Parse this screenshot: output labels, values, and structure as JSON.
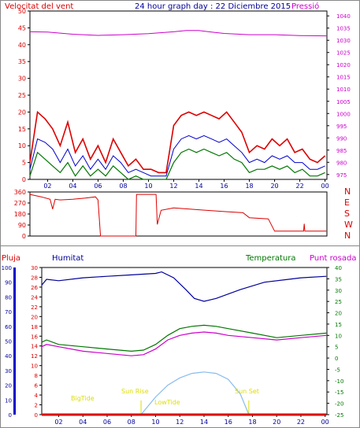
{
  "labels": {
    "wind_title": "Velocitat del vent",
    "graph_title": "24 hour graph day : 22 Diciembre 2015",
    "pressure_title": "Pressió",
    "rain_title": "Pluja",
    "humidity_title": "Humitat",
    "temperature_title": "Temperatura",
    "dewpoint_title": "Punt rosada",
    "bigtide": "BigTide",
    "lowtide": "LowTide",
    "sunrise": "Sun Rise",
    "sunset": "Sun Set"
  },
  "colors": {
    "wind": "#dd0000",
    "pressure": "#cc00cc",
    "rain": "#dd0000",
    "humidity": "#000099",
    "temperature": "#007700",
    "dewpoint": "#cc00cc",
    "sun_curve": "#88bbee",
    "event_labels": "#dddd00",
    "rain_axis_bar": "#0000cc"
  },
  "chart_data": [
    {
      "id": "wind-pressure",
      "type": "line",
      "title": "24 hour graph day : 22 Diciembre 2015",
      "x_ticks": [
        "02",
        "04",
        "06",
        "08",
        "10",
        "12",
        "14",
        "16",
        "18",
        "20",
        "22",
        "00"
      ],
      "y_left": {
        "label": "Velocitat del vent",
        "ticks": [
          "0",
          "5",
          "10",
          "15",
          "20",
          "25",
          "30",
          "35",
          "40",
          "45",
          "50"
        ],
        "range": [
          0,
          50
        ]
      },
      "y_right": {
        "label": "Pressió",
        "ticks": [
          "975",
          "980",
          "985",
          "990",
          "995",
          "1000",
          "1005",
          "1010",
          "1015",
          "1020",
          "1025",
          "1030",
          "1035",
          "1040"
        ],
        "range": [
          973,
          1042
        ]
      },
      "x_range": [
        0.6,
        24.15
      ],
      "series": [
        {
          "name": "Pressió",
          "axis": "right",
          "x": [
            0.6,
            2,
            4,
            6,
            8,
            10,
            12,
            13,
            14,
            15,
            16,
            18,
            20,
            22,
            24.1
          ],
          "y": [
            1033.5,
            1033.4,
            1032.5,
            1032.0,
            1032.3,
            1032.7,
            1033.5,
            1034.0,
            1034.0,
            1033.4,
            1032.8,
            1032.3,
            1032.3,
            1031.9,
            1031.8
          ]
        },
        {
          "name": "gust",
          "axis": "left",
          "x": [
            0.6,
            1.2,
            1.8,
            2.4,
            3,
            3.6,
            4.2,
            4.8,
            5.4,
            6,
            6.6,
            7.2,
            7.8,
            8.4,
            9,
            9.6,
            10.2,
            10.8,
            11.4,
            12,
            12.6,
            13.2,
            13.8,
            14.4,
            15,
            15.6,
            16.2,
            16.8,
            17.4,
            18,
            18.6,
            19.2,
            19.8,
            20.4,
            21,
            21.6,
            22.2,
            22.8,
            23.4,
            24
          ],
          "y": [
            5,
            20,
            18,
            15,
            10,
            17,
            8,
            12,
            6,
            10,
            5,
            12,
            8,
            4,
            6,
            3,
            3,
            2,
            2,
            16,
            19,
            20,
            19,
            20,
            19,
            18,
            20,
            17,
            14,
            8,
            10,
            9,
            12,
            10,
            12,
            8,
            9,
            6,
            5,
            7
          ]
        },
        {
          "name": "mean",
          "axis": "left",
          "x": [
            0.6,
            1.2,
            1.8,
            2.4,
            3,
            3.6,
            4.2,
            4.8,
            5.4,
            6,
            6.6,
            7.2,
            7.8,
            8.4,
            9,
            9.6,
            10.2,
            10.8,
            11.4,
            12,
            12.6,
            13.2,
            13.8,
            14.4,
            15,
            15.6,
            16.2,
            16.8,
            17.4,
            18,
            18.6,
            19.2,
            19.8,
            20.4,
            21,
            21.6,
            22.2,
            22.8,
            23.4,
            24
          ],
          "y": [
            3,
            12,
            11,
            9,
            5,
            9,
            4,
            7,
            3,
            6,
            3,
            7,
            5,
            2,
            3,
            2,
            1,
            1,
            1,
            9,
            12,
            13,
            12,
            13,
            12,
            11,
            12,
            10,
            8,
            5,
            6,
            5,
            7,
            6,
            7,
            5,
            5,
            3,
            3,
            4
          ]
        },
        {
          "name": "direction-avg",
          "axis": "left",
          "x": [
            0.6,
            1.2,
            1.8,
            2.4,
            3,
            3.6,
            4.2,
            4.8,
            5.4,
            6,
            6.6,
            7.2,
            7.8,
            8.4,
            9,
            9.6,
            10.2,
            10.8,
            11.4,
            12,
            12.6,
            13.2,
            13.8,
            14.4,
            15,
            15.6,
            16.2,
            16.8,
            17.4,
            18,
            18.6,
            19.2,
            19.8,
            20.4,
            21,
            21.6,
            22.2,
            22.8,
            23.4,
            24
          ],
          "y": [
            1,
            8,
            6,
            4,
            2,
            5,
            1,
            4,
            1,
            3,
            1,
            4,
            2,
            0,
            1,
            0,
            0,
            0,
            0,
            5,
            8,
            9,
            8,
            9,
            8,
            7,
            8,
            6,
            5,
            2,
            3,
            3,
            4,
            3,
            4,
            2,
            3,
            1,
            1,
            2
          ]
        }
      ]
    },
    {
      "id": "wind-direction",
      "type": "line",
      "y_left": {
        "ticks": [
          "0",
          "90",
          "180",
          "270",
          "360"
        ],
        "range": [
          0,
          360
        ]
      },
      "y_right": {
        "ticks": [
          "N",
          "W",
          "S",
          "E",
          "N"
        ]
      },
      "x_range": [
        0.6,
        24.15
      ],
      "series": [
        {
          "name": "direction",
          "x": [
            0.6,
            1.5,
            2.2,
            2.4,
            2.6,
            3,
            4,
            5,
            5.8,
            6,
            6.2,
            8.0,
            8.05,
            9.0,
            9.05,
            10.6,
            10.7,
            11,
            12,
            14,
            16,
            17.5,
            18,
            19.5,
            20,
            22,
            22.3,
            22.35,
            22.4,
            24.1
          ],
          "y": [
            340,
            320,
            300,
            220,
            300,
            295,
            300,
            310,
            320,
            295,
            0,
            0,
            0,
            0,
            340,
            340,
            95,
            210,
            230,
            215,
            200,
            190,
            150,
            140,
            40,
            40,
            40,
            100,
            40,
            40
          ]
        }
      ]
    },
    {
      "id": "humidity-temperature",
      "type": "line",
      "x_ticks": [
        "02",
        "04",
        "06",
        "08",
        "10",
        "12",
        "14",
        "16",
        "18",
        "20",
        "22",
        "00"
      ],
      "y_left": {
        "label": "Pluja",
        "ticks": [
          "0",
          "2",
          "4",
          "6",
          "8",
          "10",
          "12",
          "14",
          "16",
          "18",
          "20",
          "22",
          "24",
          "26",
          "28",
          "30"
        ],
        "range": [
          0,
          30
        ]
      },
      "y_left_outer": {
        "label": "Humitat",
        "ticks": [
          "0",
          "10",
          "20",
          "30",
          "40",
          "50",
          "60",
          "70",
          "80",
          "90",
          "100"
        ],
        "range": [
          0,
          100
        ]
      },
      "y_right": {
        "label": "Temperatura",
        "ticks": [
          "-25",
          "-20",
          "-15",
          "-10",
          "-5",
          "0",
          "5",
          "10",
          "15",
          "20",
          "25",
          "30",
          "35",
          "40"
        ],
        "range": [
          -25,
          40
        ]
      },
      "x_range": [
        0.6,
        24.15
      ],
      "series": [
        {
          "name": "Humitat",
          "axis": "left_outer",
          "x": [
            0.6,
            1,
            2,
            4,
            6,
            8,
            10,
            10.5,
            11.5,
            12.5,
            13.2,
            14,
            15,
            17,
            19,
            21,
            22,
            24.1
          ],
          "y": [
            88,
            92,
            91,
            93,
            94,
            95,
            96,
            97,
            93,
            85,
            79,
            77,
            79,
            85,
            90,
            92,
            93,
            94
          ]
        },
        {
          "name": "Temperatura",
          "axis": "right",
          "x": [
            0.6,
            1,
            2,
            4,
            6,
            8,
            9,
            10,
            11,
            12,
            13,
            14,
            15,
            16,
            18,
            20,
            22,
            24.1
          ],
          "y": [
            7,
            8,
            6,
            5,
            4,
            3,
            3.5,
            6,
            10,
            13,
            14,
            14.5,
            14,
            13,
            11,
            9,
            10,
            11
          ]
        },
        {
          "name": "Punt rosada",
          "axis": "right",
          "x": [
            0.6,
            1,
            2,
            4,
            6,
            8,
            9,
            10,
            11,
            12,
            13,
            14,
            15,
            16,
            18,
            20,
            22,
            24.1
          ],
          "y": [
            5,
            6,
            5,
            3,
            2,
            1,
            1.5,
            4,
            8,
            10,
            11,
            11.5,
            11,
            10,
            9,
            8,
            9,
            10
          ]
        },
        {
          "name": "sun",
          "axis": "left_outer",
          "x": [
            8.8,
            10,
            11,
            12,
            13,
            14,
            15,
            16,
            17,
            17.7
          ],
          "y": [
            0,
            12,
            20,
            25,
            28,
            29,
            28,
            24,
            14,
            0
          ]
        },
        {
          "name": "Pluja",
          "axis": "left",
          "x": [
            0.6,
            24.1
          ],
          "y": [
            0,
            0
          ]
        }
      ]
    }
  ]
}
